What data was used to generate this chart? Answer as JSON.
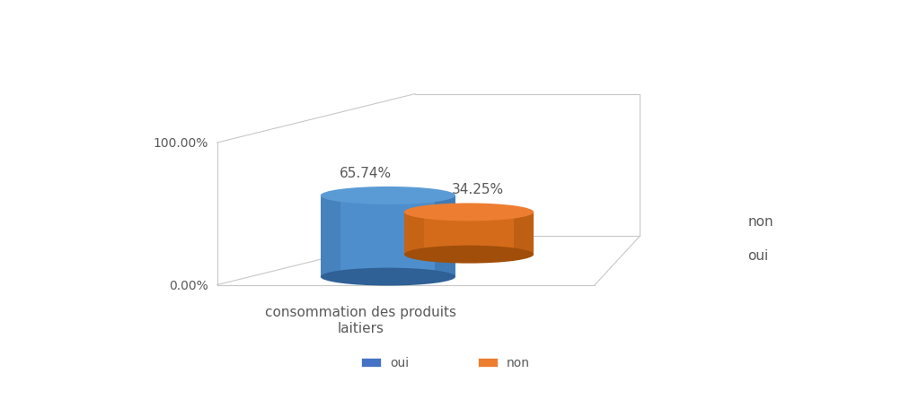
{
  "categories": [
    "oui",
    "non"
  ],
  "values": [
    65.74,
    34.25
  ],
  "labels": [
    "65.74%",
    "34.25%"
  ],
  "color_blue_face": "#4E8ECC",
  "color_blue_top": "#5B9BD5",
  "color_blue_dark": "#2F6096",
  "color_orange_face": "#D46B1A",
  "color_orange_top": "#ED7D31",
  "color_orange_dark": "#A04E0A",
  "x_label": "consommation des produits\nlaitiers",
  "y_axis_labels": [
    "0.00%",
    "100.00%"
  ],
  "side_labels_right": [
    "non",
    "oui"
  ],
  "legend_labels": [
    "oui",
    "non"
  ],
  "legend_colors": [
    "#4472C4",
    "#ED7D31"
  ],
  "background_color": "#FFFFFF",
  "value_fontsize": 11,
  "label_fontsize": 11,
  "legend_fontsize": 10
}
